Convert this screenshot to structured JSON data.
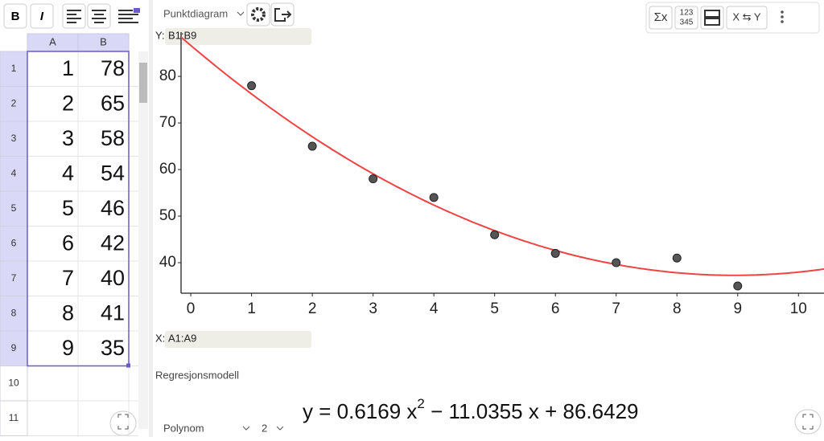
{
  "toolbar": {
    "bold": "B",
    "italic": "I"
  },
  "spreadsheet": {
    "columns": [
      "A",
      "B"
    ],
    "row_numbers": [
      1,
      2,
      3,
      4,
      5,
      6,
      7,
      8,
      9,
      10,
      11
    ],
    "rows": [
      [
        1,
        78
      ],
      [
        2,
        65
      ],
      [
        3,
        58
      ],
      [
        4,
        54
      ],
      [
        5,
        46
      ],
      [
        6,
        42
      ],
      [
        7,
        40
      ],
      [
        8,
        41
      ],
      [
        9,
        35
      ]
    ]
  },
  "graphics": {
    "chart_type": "Punktdiagram",
    "tools": {
      "sum": "Σx",
      "counts": [
        "123",
        "345"
      ],
      "swap": "X ⇆ Y"
    }
  },
  "plot": {
    "y_label": "Y:",
    "y_range": "B1:B9",
    "x_label": "X:",
    "x_range": "A1:A9",
    "xlim": [
      -0.16,
      10.42
    ],
    "ylim": [
      33.45,
      89.5
    ],
    "xticks": [
      0,
      1,
      2,
      3,
      4,
      5,
      6,
      7,
      8,
      9,
      10
    ],
    "yticks": [
      40,
      50,
      60,
      70,
      80
    ],
    "curve_color": "#ee4444",
    "point_color": "#555555"
  },
  "regression": {
    "title": "Regresjonsmodell",
    "model": "Polynom",
    "degree": 2,
    "equation": {
      "lhs": "y =",
      "a": 0.6169,
      "x1": "x",
      "power": 2,
      "op1": "−",
      "b": 11.0355,
      "x2": "x",
      "op2": "+",
      "c": 86.6429
    }
  }
}
